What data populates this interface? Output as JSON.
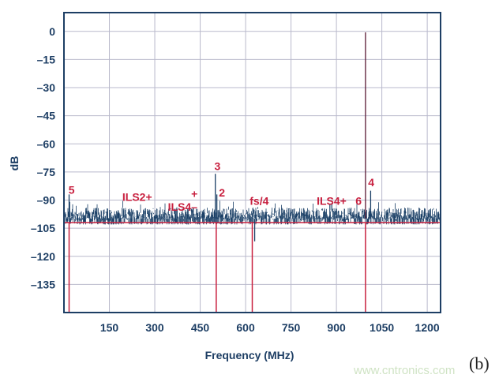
{
  "chart_data": {
    "type": "line",
    "title": "",
    "xlabel": "Frequency (MHz)",
    "ylabel": "dB",
    "xlim": [
      0,
      1244
    ],
    "ylim": [
      -150,
      10
    ],
    "xticks": [
      150,
      300,
      450,
      600,
      750,
      900,
      1050,
      1200
    ],
    "xtick_labels": [
      "150",
      "300",
      "450",
      "600",
      "750",
      "900",
      "1050",
      "1200"
    ],
    "yticks": [
      0,
      -15,
      -30,
      -45,
      -60,
      -75,
      -90,
      -105,
      -120,
      -135
    ],
    "ytick_labels": [
      "0",
      "–15",
      "–30",
      "–45",
      "–60",
      "–75",
      "–90",
      "–105",
      "–120",
      "–135"
    ],
    "grid": true,
    "noise_floor_db": -102,
    "noise_range_db": [
      -112,
      -94
    ],
    "spikes": [
      {
        "x": 996,
        "y": -0.5
      },
      {
        "x": 500,
        "y": -76
      },
      {
        "x": 505,
        "y": -87
      },
      {
        "x": 1013,
        "y": -85
      },
      {
        "x": 17,
        "y": -87
      },
      {
        "x": 630,
        "y": -112
      }
    ],
    "reference_lines_x": [
      17,
      503,
      622,
      996
    ],
    "reference_line_y": -102,
    "annotations": [
      {
        "text": "5",
        "x": 25,
        "y": -86.6
      },
      {
        "text": "ILS2+",
        "x": 242,
        "y": -90.4
      },
      {
        "text": "+",
        "x": 431,
        "y": -88.7
      },
      {
        "text": "ILS4–",
        "x": 392,
        "y": -95.6
      },
      {
        "text": "3",
        "x": 507,
        "y": -74
      },
      {
        "text": "2",
        "x": 522,
        "y": -88
      },
      {
        "text": "fs/4",
        "x": 645,
        "y": -92.6
      },
      {
        "text": "ILS4+",
        "x": 884,
        "y": -92.6
      },
      {
        "text": "6",
        "x": 973,
        "y": -92.6
      },
      {
        "text": "4",
        "x": 1015,
        "y": -82.7
      }
    ],
    "colors": {
      "trace": "#1a3f66",
      "markers": "#c8203f",
      "grid": "#b9b9cc",
      "axis": "#1d3e64"
    }
  },
  "panel_label": "(b)",
  "watermark": "www.cntronics.com"
}
